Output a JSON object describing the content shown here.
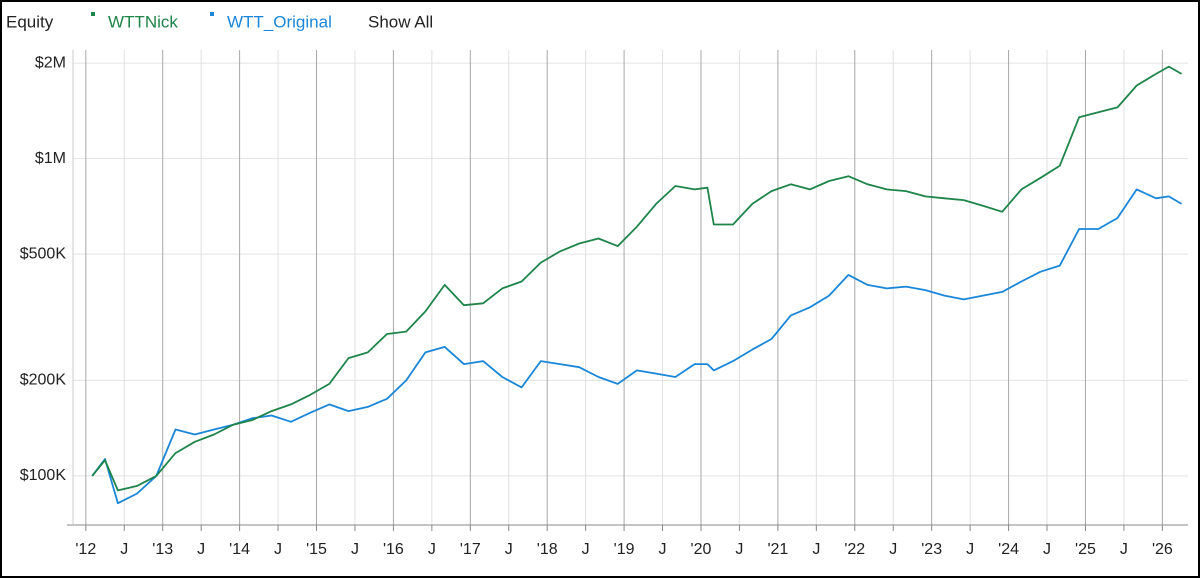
{
  "chart_data": {
    "type": "line",
    "title": "Equity",
    "show_all_label": "Show All",
    "log_scale": true,
    "grid": true,
    "x": [
      "2012-02",
      "2012-04",
      "2012-06",
      "2012-09",
      "2012-12",
      "2013-03",
      "2013-06",
      "2013-09",
      "2013-12",
      "2014-03",
      "2014-06",
      "2014-09",
      "2014-12",
      "2015-03",
      "2015-06",
      "2015-09",
      "2015-12",
      "2016-03",
      "2016-06",
      "2016-09",
      "2016-12",
      "2017-03",
      "2017-06",
      "2017-09",
      "2017-12",
      "2018-03",
      "2018-06",
      "2018-09",
      "2018-12",
      "2019-03",
      "2019-06",
      "2019-09",
      "2019-12",
      "2020-02",
      "2020-03",
      "2020-06",
      "2020-09",
      "2020-12",
      "2021-03",
      "2021-06",
      "2021-09",
      "2021-12",
      "2022-03",
      "2022-06",
      "2022-09",
      "2022-12",
      "2023-03",
      "2023-06",
      "2023-09",
      "2023-12",
      "2024-03",
      "2024-06",
      "2024-09",
      "2024-12",
      "2025-03",
      "2025-06",
      "2025-09",
      "2025-12",
      "2026-02",
      "2026-04"
    ],
    "series": [
      {
        "name": "WTTNick",
        "color": "#1e8449",
        "values": [
          100000,
          112000,
          90000,
          93000,
          100000,
          118000,
          128000,
          135000,
          145000,
          150000,
          160000,
          168000,
          180000,
          195000,
          235000,
          245000,
          280000,
          285000,
          330000,
          400000,
          345000,
          350000,
          390000,
          410000,
          470000,
          510000,
          540000,
          560000,
          530000,
          610000,
          720000,
          820000,
          800000,
          810000,
          620000,
          620000,
          720000,
          790000,
          830000,
          800000,
          850000,
          880000,
          830000,
          800000,
          790000,
          760000,
          750000,
          740000,
          710000,
          680000,
          800000,
          870000,
          950000,
          1350000,
          1400000,
          1450000,
          1700000,
          1850000,
          1950000,
          1850000
        ]
      },
      {
        "name": "WTT_Original",
        "color": "#1a86d8",
        "values": [
          100000,
          113000,
          82000,
          88000,
          100000,
          140000,
          135000,
          140000,
          145000,
          152000,
          155000,
          148000,
          158000,
          168000,
          160000,
          165000,
          175000,
          200000,
          245000,
          255000,
          225000,
          230000,
          205000,
          190000,
          230000,
          225000,
          220000,
          205000,
          195000,
          215000,
          210000,
          205000,
          225000,
          225000,
          215000,
          230000,
          250000,
          270000,
          320000,
          340000,
          370000,
          430000,
          400000,
          390000,
          395000,
          385000,
          370000,
          360000,
          370000,
          380000,
          410000,
          440000,
          460000,
          600000,
          600000,
          650000,
          800000,
          750000,
          760000,
          720000
        ]
      }
    ],
    "xlim": [
      "2011-11",
      "2026-05"
    ],
    "xticks": [
      {
        "value": "2012-01",
        "label": "'12"
      },
      {
        "value": "2012-07",
        "label": "J"
      },
      {
        "value": "2013-01",
        "label": "'13"
      },
      {
        "value": "2013-07",
        "label": "J"
      },
      {
        "value": "2014-01",
        "label": "'14"
      },
      {
        "value": "2014-07",
        "label": "J"
      },
      {
        "value": "2015-01",
        "label": "'15"
      },
      {
        "value": "2015-07",
        "label": "J"
      },
      {
        "value": "2016-01",
        "label": "'16"
      },
      {
        "value": "2016-07",
        "label": "J"
      },
      {
        "value": "2017-01",
        "label": "'17"
      },
      {
        "value": "2017-07",
        "label": "J"
      },
      {
        "value": "2018-01",
        "label": "'18"
      },
      {
        "value": "2018-07",
        "label": "J"
      },
      {
        "value": "2019-01",
        "label": "'19"
      },
      {
        "value": "2019-07",
        "label": "J"
      },
      {
        "value": "2020-01",
        "label": "'20"
      },
      {
        "value": "2020-07",
        "label": "J"
      },
      {
        "value": "2021-01",
        "label": "'21"
      },
      {
        "value": "2021-07",
        "label": "J"
      },
      {
        "value": "2022-01",
        "label": "'22"
      },
      {
        "value": "2022-07",
        "label": "J"
      },
      {
        "value": "2023-01",
        "label": "'23"
      },
      {
        "value": "2023-07",
        "label": "J"
      },
      {
        "value": "2024-01",
        "label": "'24"
      },
      {
        "value": "2024-07",
        "label": "J"
      },
      {
        "value": "2025-01",
        "label": "'25"
      },
      {
        "value": "2025-07",
        "label": "J"
      },
      {
        "value": "2026-01",
        "label": "'26"
      }
    ],
    "ylim": [
      70000,
      2200000
    ],
    "yticks": [
      {
        "value": 100000,
        "label": "$100K"
      },
      {
        "value": 200000,
        "label": "$200K"
      },
      {
        "value": 500000,
        "label": "$500K"
      },
      {
        "value": 1000000,
        "label": "$1M"
      },
      {
        "value": 2000000,
        "label": "$2M"
      }
    ]
  }
}
